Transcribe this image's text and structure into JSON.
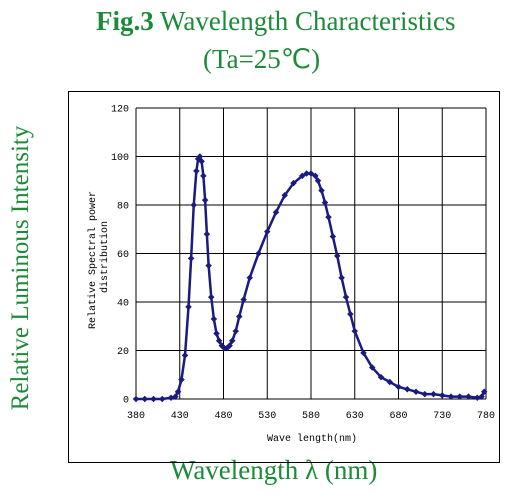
{
  "figure": {
    "fig_label": "Fig.3",
    "fig_title": "Wavelength Characteristics",
    "condition": "(Ta=25℃)",
    "outer_ylabel": "Relative Luminous Intensity",
    "outer_xlabel": "Wavelength λ (nm)"
  },
  "colors": {
    "title": "#1d8a3a",
    "series": "#1a1a80",
    "grid": "#000000"
  },
  "chart_data": {
    "type": "scatter",
    "xlabel": "Wave length(nm)",
    "ylabel": "Relative Spectral power distribution",
    "xlim": [
      380,
      780
    ],
    "ylim": [
      0,
      120
    ],
    "xticks": [
      380,
      430,
      480,
      530,
      580,
      630,
      680,
      730,
      780
    ],
    "yticks": [
      0,
      20,
      40,
      60,
      80,
      100,
      120
    ],
    "grid": true,
    "legend": "none",
    "series": [
      {
        "x": [
          380,
          390,
          400,
          410,
          420,
          425,
          428,
          432,
          436,
          440,
          443,
          446,
          449,
          451,
          453,
          455,
          457,
          459,
          461,
          463,
          466,
          469,
          472,
          475,
          478,
          481,
          484,
          487,
          490,
          494,
          498,
          503,
          510,
          520,
          530,
          540,
          550,
          560,
          570,
          575,
          580,
          585,
          588,
          592,
          596,
          600,
          605,
          610,
          615,
          620,
          625,
          630,
          640,
          650,
          660,
          670,
          680,
          690,
          700,
          710,
          720,
          730,
          740,
          750,
          760,
          770,
          775,
          778
        ],
        "y": [
          0,
          0,
          0,
          0,
          0.5,
          1,
          3,
          8,
          18,
          38,
          58,
          80,
          94,
          99,
          100,
          98,
          92,
          82,
          68,
          55,
          42,
          33,
          27,
          24,
          22,
          21,
          21,
          22,
          24,
          28,
          34,
          41,
          50,
          60,
          69,
          77,
          84,
          89,
          92,
          93,
          93,
          92,
          90,
          86,
          81,
          75,
          67,
          59,
          50,
          42,
          35,
          28,
          19,
          13,
          9,
          7,
          5,
          4,
          3,
          2,
          2,
          1.5,
          1,
          1,
          1,
          0.5,
          1,
          3
        ]
      }
    ]
  }
}
